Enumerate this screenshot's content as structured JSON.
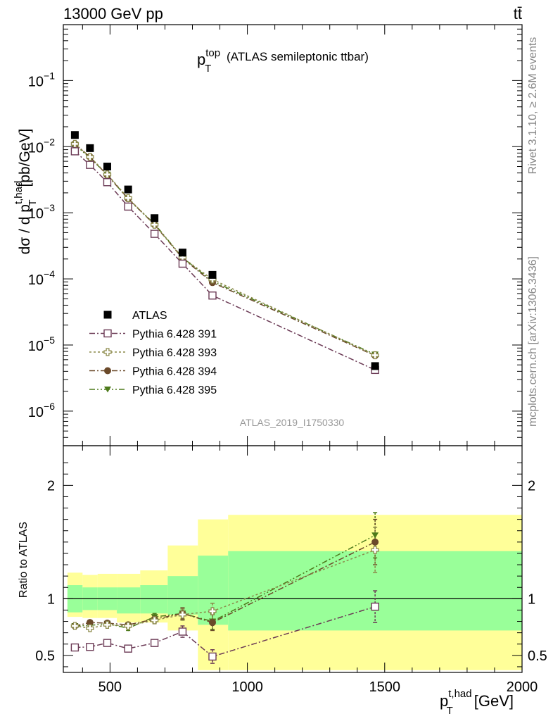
{
  "header": {
    "energy_label": "13000 GeV pp",
    "process_label": "tt̄"
  },
  "side_labels": {
    "rivet": "Rivet 3.1.10, ≥ 2.6M events",
    "mcplots": "mcplots.cern.ch [arXiv:1306.3436]"
  },
  "colors": {
    "atlas": "#000000",
    "p391": "#6b3a55",
    "p393": "#8c8a4a",
    "p394": "#6b4a2a",
    "p395": "#4d7a1a",
    "band_inner": "#99ff99",
    "band_outer": "#ffff99"
  },
  "chart_data": [
    {
      "type": "scatter",
      "panel": "main",
      "title_main": "p",
      "title_sup": "top",
      "title_sub": "T",
      "title_rest": "(ATLAS semileptonic ttbar)",
      "analysis_label": "ATLAS_2019_I1750330",
      "ylabel_main": "dσ / d p",
      "ylabel_sup": "t,had",
      "ylabel_sub": "T",
      "ylabel_unit": "[pb/GeV]",
      "yscale": "log",
      "xlim": [
        330,
        2000
      ],
      "ylim": [
        3e-07,
        0.7
      ],
      "ytick_labels": [
        {
          "base": "10",
          "exp": "−1",
          "value": 0.1
        },
        {
          "base": "10",
          "exp": "−2",
          "value": 0.01
        },
        {
          "base": "10",
          "exp": "−3",
          "value": 0.001
        },
        {
          "base": "10",
          "exp": "−4",
          "value": 0.0001
        },
        {
          "base": "10",
          "exp": "−5",
          "value": 1e-05
        },
        {
          "base": "10",
          "exp": "−6",
          "value": 1e-06
        }
      ],
      "legend_position": "lower-left",
      "x": [
        372,
        427,
        490,
        566,
        662,
        764,
        873,
        1465
      ],
      "series": [
        {
          "name": "ATLAS",
          "key": "atlas",
          "marker": "square-filled",
          "values": [
            0.015,
            0.0095,
            0.005,
            0.00225,
            0.00083,
            0.00025,
            0.000115,
            4.8e-06
          ]
        },
        {
          "name": "Pythia 6.428 391",
          "key": "p391",
          "marker": "square-open",
          "dash": "8,3,2,3",
          "values": [
            0.0085,
            0.0053,
            0.0029,
            0.00124,
            0.00048,
            0.00017,
            5.6e-05,
            4.2e-06
          ]
        },
        {
          "name": "Pythia 6.428 393",
          "key": "p393",
          "marker": "cross-open",
          "dash": "3,3",
          "values": [
            0.011,
            0.007,
            0.0038,
            0.00167,
            0.00066,
            0.00021,
            9.8e-05,
            7e-06
          ]
        },
        {
          "name": "Pythia 6.428 394",
          "key": "p394",
          "marker": "circle-filled",
          "dash": "8,3,2,3",
          "values": [
            0.011,
            0.007,
            0.0037,
            0.00163,
            0.00066,
            0.000205,
            8.8e-05,
            6.9e-06
          ]
        },
        {
          "name": "Pythia 6.428 395",
          "key": "p395",
          "marker": "triangle-down-filled",
          "dash": "8,3,2,3,2,3",
          "values": [
            0.0108,
            0.0067,
            0.0038,
            0.0016,
            0.00068,
            0.00021,
            9.2e-05,
            7.2e-06
          ]
        }
      ]
    },
    {
      "type": "scatter",
      "panel": "ratio",
      "ylabel": "Ratio to ATLAS",
      "xlabel_main": "p",
      "xlabel_sup": "t,had",
      "xlabel_sub": "T",
      "xlabel_unit": "[GeV]",
      "xlim": [
        330,
        2000
      ],
      "ylim": [
        0.35,
        2.35
      ],
      "xticks": [
        500,
        1000,
        1500,
        2000
      ],
      "xtick_labels": [
        "500",
        "1000",
        "1500",
        "2000"
      ],
      "yticks": [
        0.5,
        1,
        2
      ],
      "ytick_labels": [
        "0.5",
        "1",
        "2"
      ],
      "bins": [
        [
          345,
          400
        ],
        [
          400,
          455
        ],
        [
          455,
          525
        ],
        [
          525,
          610
        ],
        [
          610,
          710
        ],
        [
          710,
          820
        ],
        [
          820,
          930
        ],
        [
          930,
          2000
        ]
      ],
      "band_inner": [
        [
          0.88,
          1.12
        ],
        [
          0.9,
          1.1
        ],
        [
          0.9,
          1.1
        ],
        [
          0.87,
          1.1
        ],
        [
          0.87,
          1.12
        ],
        [
          0.86,
          1.2
        ],
        [
          0.77,
          1.38
        ],
        [
          0.72,
          1.42
        ]
      ],
      "band_outer": [
        [
          0.84,
          1.23
        ],
        [
          0.83,
          1.21
        ],
        [
          0.83,
          1.22
        ],
        [
          0.79,
          1.22
        ],
        [
          0.79,
          1.25
        ],
        [
          0.72,
          1.47
        ],
        [
          0.37,
          1.7
        ],
        [
          0.37,
          1.74
        ]
      ],
      "x": [
        372,
        427,
        490,
        566,
        662,
        764,
        873,
        1465
      ],
      "series": [
        {
          "name": "Pythia 6.428 391",
          "key": "p391",
          "marker": "square-open",
          "dash": "8,3,2,3",
          "values": [
            0.57,
            0.575,
            0.61,
            0.56,
            0.61,
            0.71,
            0.49,
            0.93
          ],
          "errors": [
            0.01,
            0.01,
            0.01,
            0.02,
            0.03,
            0.05,
            0.06,
            0.14
          ]
        },
        {
          "name": "Pythia 6.428 393",
          "key": "p393",
          "marker": "cross-open",
          "dash": "3,3",
          "values": [
            0.76,
            0.74,
            0.77,
            0.76,
            0.81,
            0.86,
            0.89,
            1.43
          ],
          "errors": [
            0.01,
            0.01,
            0.01,
            0.02,
            0.03,
            0.05,
            0.07,
            0.2
          ]
        },
        {
          "name": "Pythia 6.428 394",
          "key": "p394",
          "marker": "circle-filled",
          "dash": "8,3,2,3",
          "values": [
            0.76,
            0.79,
            0.785,
            0.77,
            0.82,
            0.87,
            0.79,
            1.5
          ],
          "errors": [
            0.01,
            0.01,
            0.01,
            0.02,
            0.03,
            0.05,
            0.07,
            0.2
          ]
        },
        {
          "name": "Pythia 6.428 395",
          "key": "p395",
          "marker": "triangle-down-filled",
          "dash": "8,3,2,3,2,3",
          "values": [
            0.76,
            0.765,
            0.78,
            0.74,
            0.84,
            0.87,
            0.8,
            1.56
          ],
          "errors": [
            0.01,
            0.01,
            0.01,
            0.02,
            0.03,
            0.05,
            0.07,
            0.2
          ]
        }
      ]
    }
  ]
}
